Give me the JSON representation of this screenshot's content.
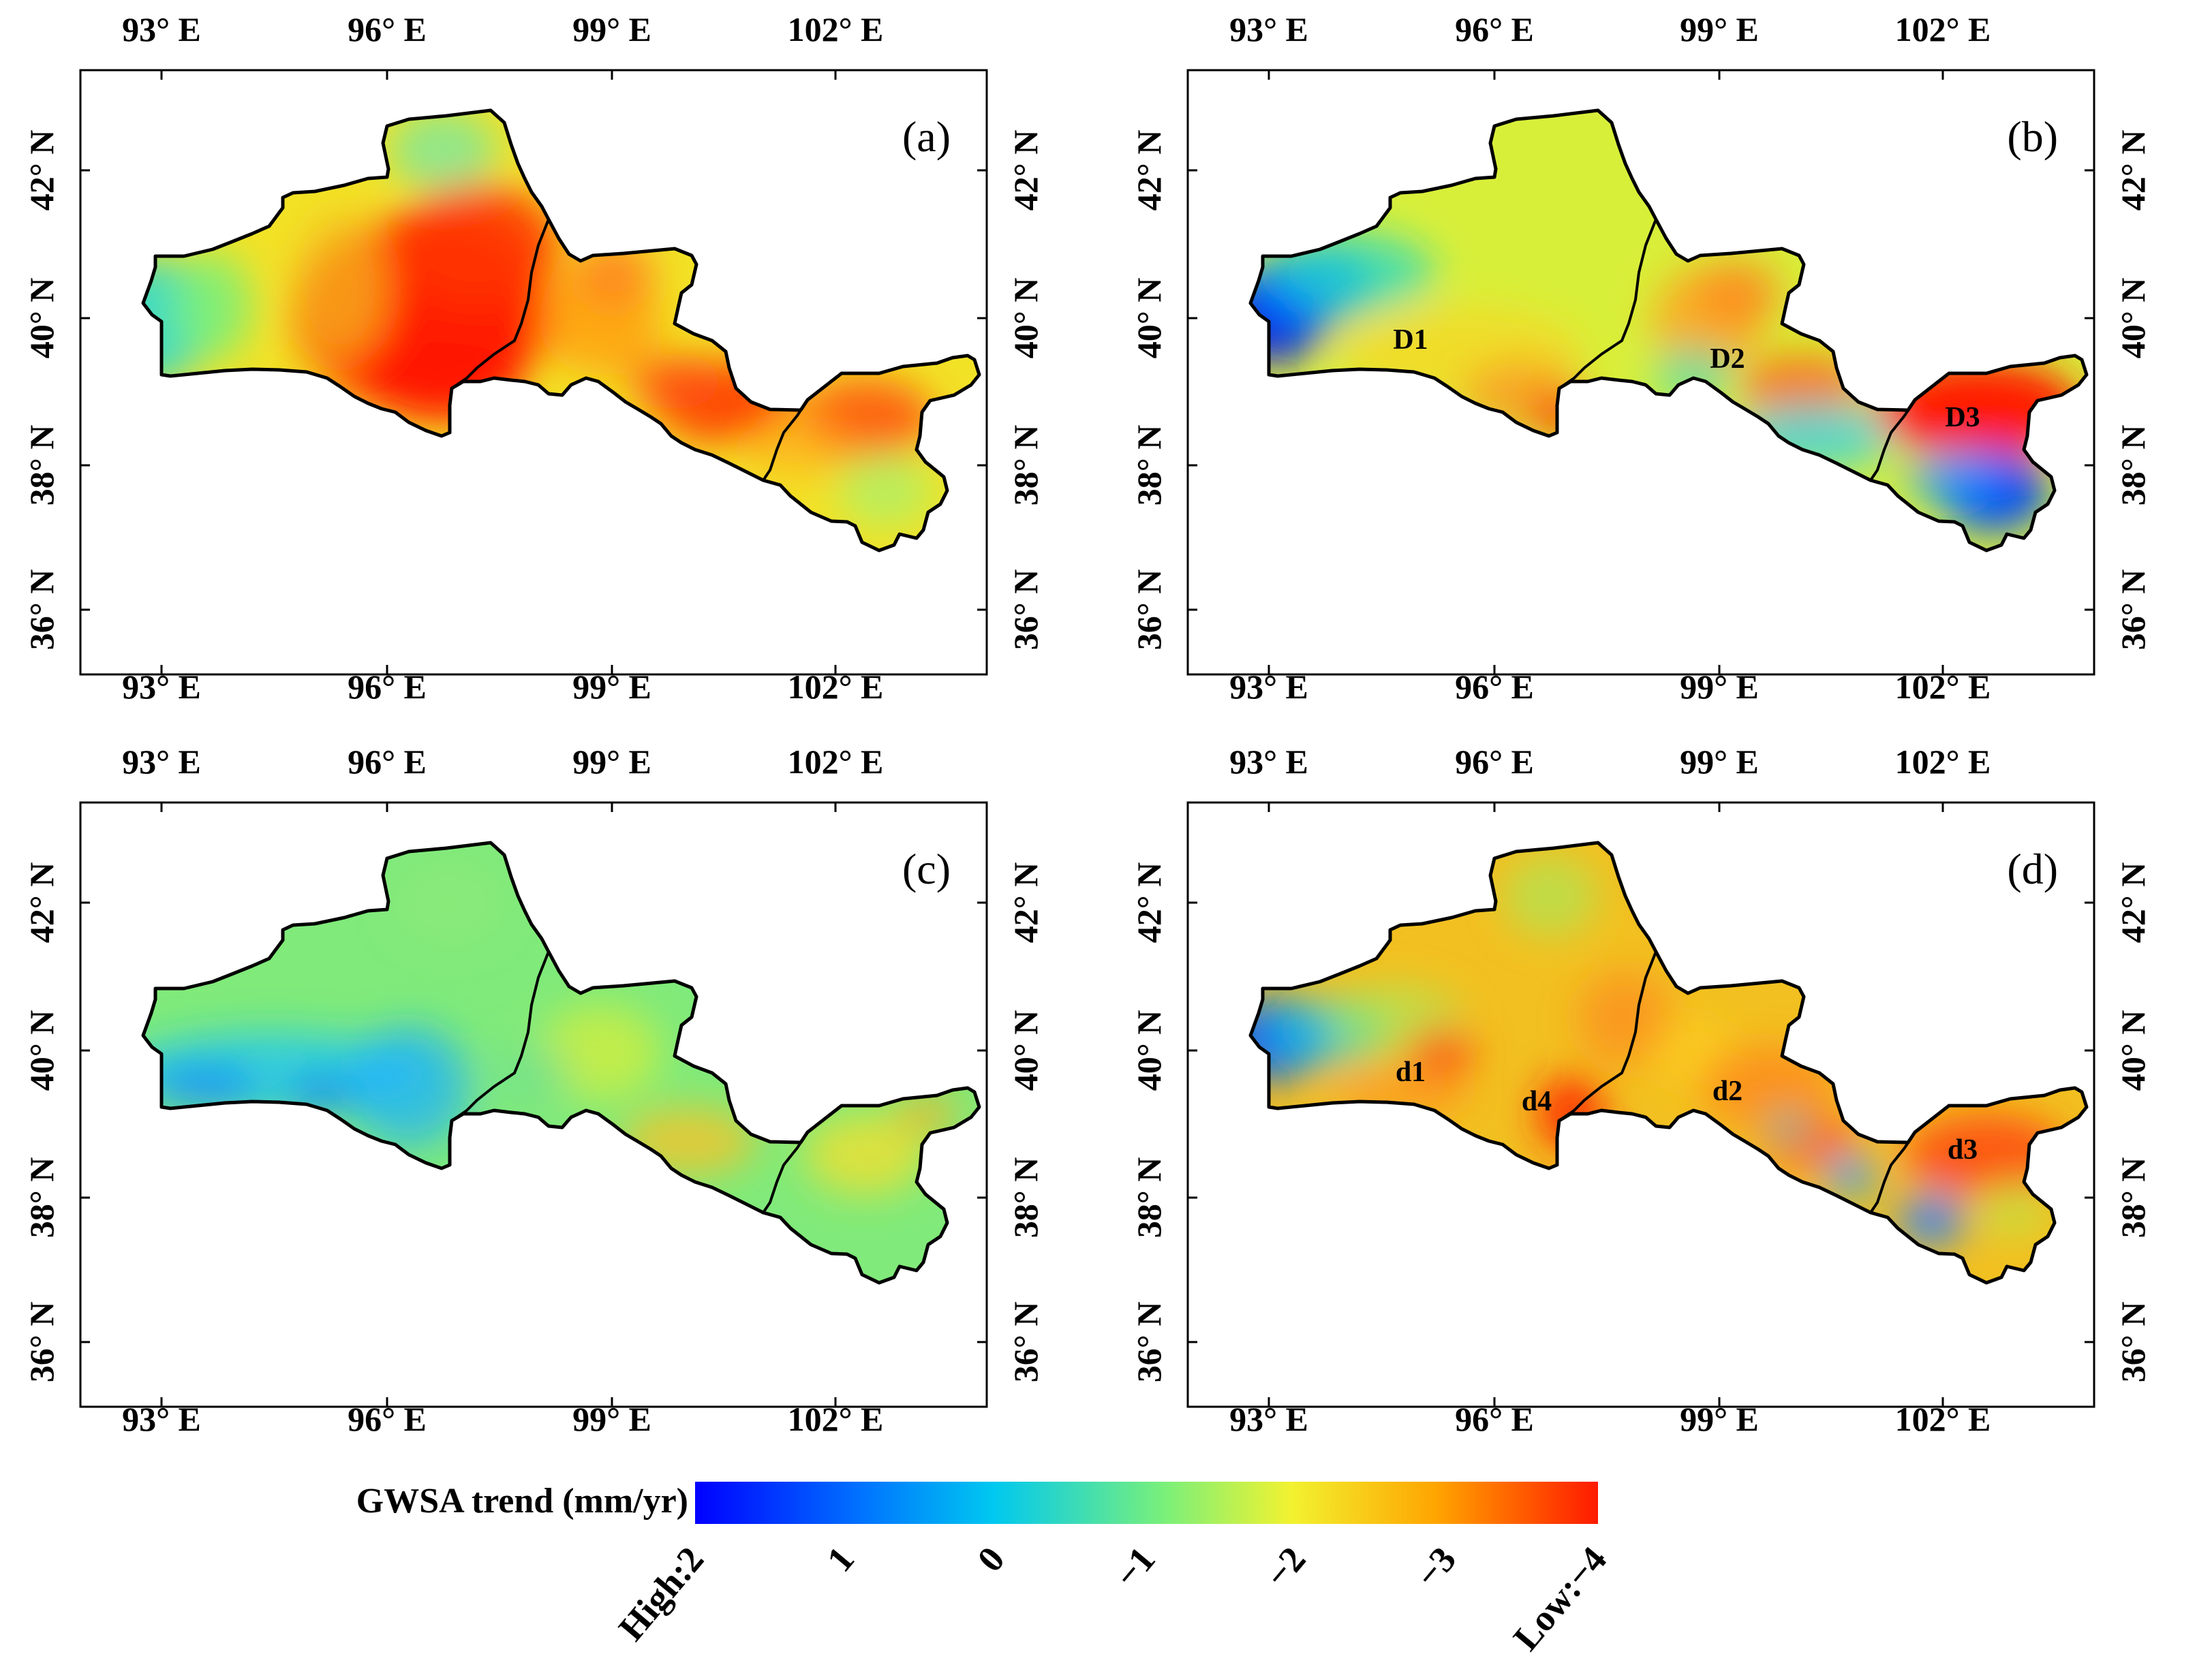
{
  "figure": {
    "x_ticks": [
      "93° E",
      "96° E",
      "99° E",
      "102° E"
    ],
    "y_ticks": [
      "42° N",
      "40° N",
      "38° N",
      "36° N"
    ]
  },
  "panels": [
    {
      "id": "a",
      "label": "(a)",
      "regions": []
    },
    {
      "id": "b",
      "label": "(b)",
      "regions": [
        "D1",
        "D2",
        "D3"
      ]
    },
    {
      "id": "c",
      "label": "(c)",
      "regions": []
    },
    {
      "id": "d",
      "label": "(d)",
      "regions": [
        "d1",
        "d2",
        "d3",
        "d4"
      ]
    }
  ],
  "legend": {
    "title": "GWSA trend (mm/yr)",
    "ticks": [
      "High:2",
      "1",
      "0",
      "−1",
      "−2",
      "−3",
      "Low:−4"
    ],
    "colors": [
      "#0000ff",
      "#00bfff",
      "#33e6a6",
      "#f2f230",
      "#ffa500",
      "#ff1a00"
    ]
  }
}
